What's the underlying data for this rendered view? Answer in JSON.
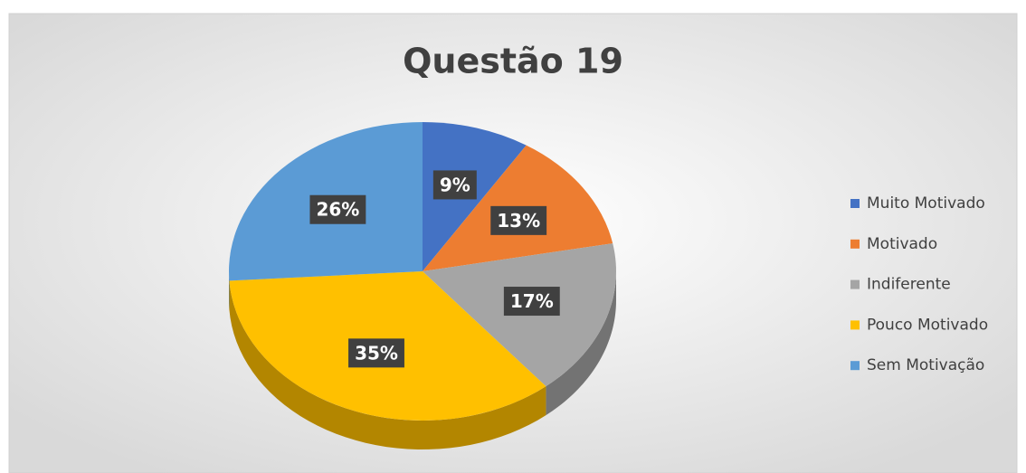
{
  "chart_data": {
    "type": "pie",
    "title": "Questão 19",
    "categories": [
      "Muito Motivado",
      "Motivado",
      "Indiferente",
      "Pouco Motivado",
      "Sem Motivação"
    ],
    "values": [
      9,
      13,
      17,
      35,
      26
    ],
    "value_labels": [
      "9%",
      "13%",
      "17%",
      "35%",
      "26%"
    ],
    "colors": [
      "#4472c4",
      "#ed7d31",
      "#a5a5a5",
      "#ffc000",
      "#5b9bd5"
    ],
    "legend": "right"
  }
}
